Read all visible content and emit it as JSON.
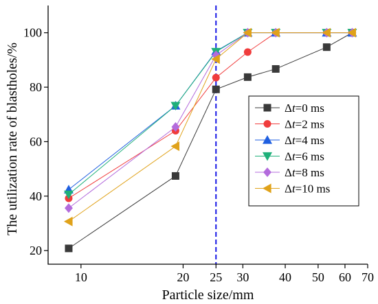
{
  "chart_data": {
    "type": "line",
    "title": "",
    "xlabel": "Particle size/mm",
    "ylabel": "The utilization rate of blastholes/%",
    "x_scale": "log",
    "xlim": [
      8,
      70
    ],
    "ylim": [
      15,
      110
    ],
    "x_ticks": [
      10,
      20,
      25,
      30,
      40,
      50,
      60,
      70
    ],
    "y_ticks": [
      20,
      40,
      60,
      80,
      100
    ],
    "grid": false,
    "legend_position": "center-right",
    "x": [
      9.2,
      19,
      25,
      31,
      37.5,
      53,
      63
    ],
    "reference_line": {
      "x": 25,
      "color": "#1515e6",
      "style": "dashed"
    },
    "series": [
      {
        "name": "Δt=0 ms",
        "symbol": "Δ",
        "emph": "t",
        "rest": "=0 ms",
        "color": "#3a3a3a",
        "marker": "square",
        "values": [
          20.8,
          47.4,
          79.2,
          83.7,
          86.7,
          94.7,
          100
        ]
      },
      {
        "name": "Δt=2 ms",
        "symbol": "Δ",
        "emph": "t",
        "rest": "=2 ms",
        "color": "#f03c3c",
        "marker": "circle",
        "values": [
          39.2,
          64.0,
          83.5,
          92.9,
          100,
          100,
          100
        ]
      },
      {
        "name": "Δt=4 ms",
        "symbol": "Δ",
        "emph": "t",
        "rest": "=4 ms",
        "color": "#1f5fe0",
        "marker": "triangle-up",
        "values": [
          42.4,
          73.2,
          93.2,
          100,
          100,
          100,
          100
        ]
      },
      {
        "name": "Δt=6 ms",
        "symbol": "Δ",
        "emph": "t",
        "rest": "=6 ms",
        "color": "#1fb07a",
        "marker": "triangle-down",
        "values": [
          40.6,
          73.2,
          93.0,
          100,
          100,
          100,
          100
        ]
      },
      {
        "name": "Δt=8 ms",
        "symbol": "Δ",
        "emph": "t",
        "rest": "=8 ms",
        "color": "#b36bdc",
        "marker": "diamond",
        "values": [
          35.6,
          65.4,
          91.7,
          100,
          100,
          100,
          100
        ]
      },
      {
        "name": "Δt=10 ms",
        "symbol": "Δ",
        "emph": "t",
        "rest": "=10 ms",
        "color": "#e0a21a",
        "marker": "triangle-left",
        "values": [
          30.7,
          58.3,
          90.3,
          100,
          100,
          100,
          100
        ]
      }
    ]
  }
}
